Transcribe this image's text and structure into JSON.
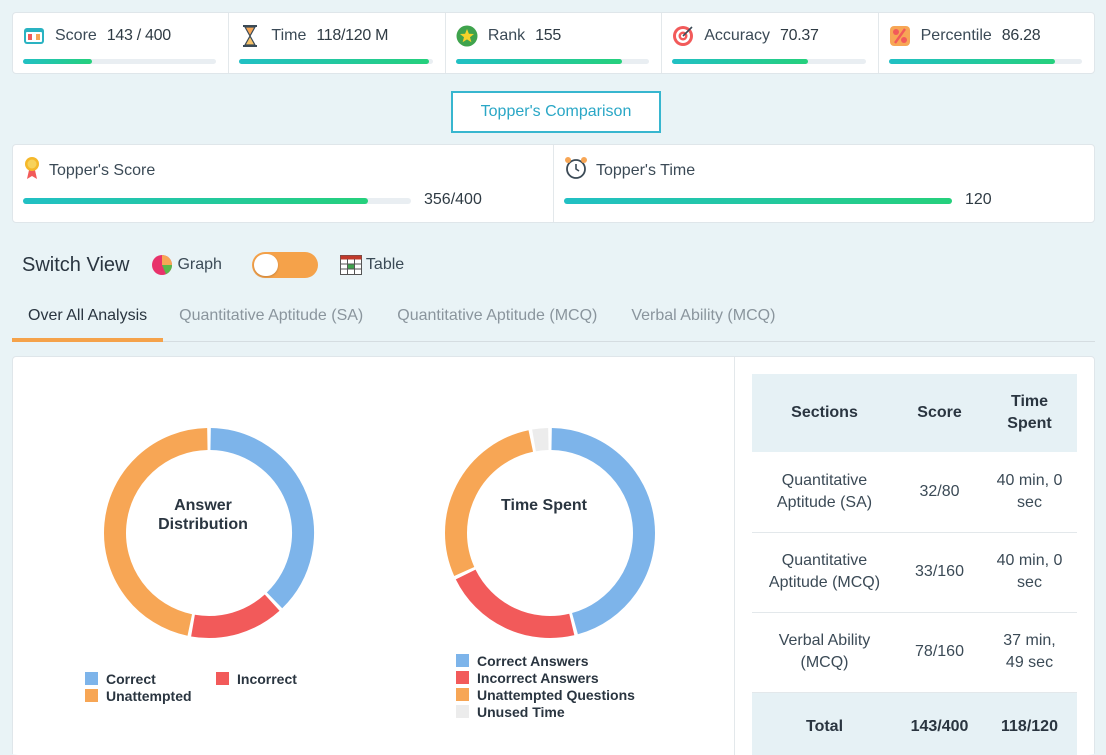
{
  "stats": [
    {
      "label": "Score",
      "value": "143 / 400",
      "icon": "scorecard-icon",
      "progress": 0.3575
    },
    {
      "label": "Time",
      "value": "118/120 M",
      "icon": "hourglass-icon",
      "progress": 0.98
    },
    {
      "label": "Rank",
      "value": "155",
      "icon": "star-icon",
      "progress": 0.86
    },
    {
      "label": "Accuracy",
      "value": "70.37",
      "icon": "target-icon",
      "progress": 0.7037
    },
    {
      "label": "Percentile",
      "value": "86.28",
      "icon": "percent-icon",
      "progress": 0.8628
    }
  ],
  "topper_button": "Topper's Comparison",
  "topper": {
    "score_label": "Topper's Score",
    "score_value": "356/400",
    "score_progress": 0.89,
    "time_label": "Topper's Time",
    "time_value": "120",
    "time_progress": 1.0
  },
  "switch_view": {
    "title": "Switch View",
    "graph_label": "Graph",
    "table_label": "Table"
  },
  "tabs": [
    {
      "label": "Over All Analysis",
      "active": true
    },
    {
      "label": "Quantitative Aptitude (SA)",
      "active": false
    },
    {
      "label": "Quantitative Aptitude (MCQ)",
      "active": false
    },
    {
      "label": "Verbal Ability (MCQ)",
      "active": false
    }
  ],
  "colors": {
    "correct": "#7db4ea",
    "incorrect": "#f25a5a",
    "unattempted": "#f7a655",
    "unused": "#ececec",
    "accent": "#f5a24a",
    "teal": "#2aa7c6"
  },
  "chart_data": [
    {
      "type": "pie",
      "title": "Answer Distribution",
      "categories": [
        "Correct",
        "Incorrect",
        "Unattempted"
      ],
      "values": [
        38,
        15,
        47
      ]
    },
    {
      "type": "pie",
      "title": "Time Spent",
      "categories": [
        "Correct Answers",
        "Incorrect Answers",
        "Unattempted Questions",
        "Unused Time"
      ],
      "values": [
        46,
        22,
        29,
        3
      ]
    }
  ],
  "answer_legend": {
    "correct": "Correct",
    "incorrect": "Incorrect",
    "unattempted": "Unattempted"
  },
  "time_legend": {
    "correct": "Correct Answers",
    "incorrect": "Incorrect Answers",
    "unattempted": "Unattempted Questions",
    "unused": "Unused Time"
  },
  "section_table": {
    "headers": [
      "Sections",
      "Score",
      "Time Spent"
    ],
    "rows": [
      {
        "section": "Quantitative Aptitude (SA)",
        "score": "32/80",
        "time": "40 min, 0 sec"
      },
      {
        "section": "Quantitative Aptitude (MCQ)",
        "score": "33/160",
        "time": "40 min, 0 sec"
      },
      {
        "section": "Verbal Ability (MCQ)",
        "score": "78/160",
        "time": "37 min, 49 sec"
      }
    ],
    "total": {
      "label": "Total",
      "score": "143/400",
      "time": "118/120"
    }
  }
}
